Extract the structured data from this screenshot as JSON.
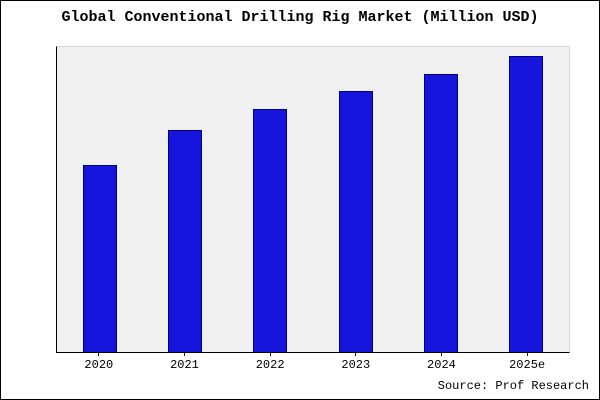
{
  "page": {
    "title": "Global Conventional Drilling Rig Market (Million USD)",
    "source": "Source: Prof Research"
  },
  "chart_data": {
    "type": "bar",
    "title": "Global Conventional Drilling Rig Market (Million USD)",
    "categories": [
      "2020",
      "2021",
      "2022",
      "2023",
      "2024",
      "2025e"
    ],
    "values": [
      63,
      75,
      82,
      88,
      94,
      100
    ],
    "xlabel": "",
    "ylabel": "",
    "ylim": [
      0,
      103
    ],
    "grid": false,
    "legend": false,
    "bar_color": "#1515DC",
    "bar_border_color": "#000080",
    "plot_background": "#f0f0f0",
    "source_note": "Source: Prof Research"
  }
}
